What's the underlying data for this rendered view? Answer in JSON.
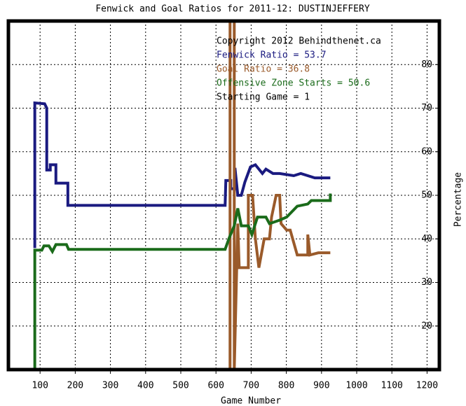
{
  "chart_data": {
    "type": "line",
    "title": "Fenwick and Goal Ratios for 2011-12: DUSTINJEFFERY",
    "xlabel": "Game Number",
    "ylabel": "Percentage",
    "annotations": [
      {
        "text": "Copyright 2012 Behindthenet.ca",
        "color": "#000000"
      },
      {
        "text": "Fenwick Ratio = 53.7",
        "color": "#1a1a80"
      },
      {
        "text": "Goal Ratio = 36.8",
        "color": "#9a5a2a"
      },
      {
        "text": "Offensive Zone Starts = 50.6",
        "color": "#1a6b1a"
      },
      {
        "text": "Starting Game = 1",
        "color": "#000000"
      }
    ],
    "xlim": [
      10,
      1235
    ],
    "ylim": [
      10,
      90
    ],
    "xticks": [
      100,
      200,
      300,
      400,
      500,
      600,
      700,
      800,
      900,
      1000,
      1100,
      1200
    ],
    "yticks": [
      20,
      30,
      40,
      50,
      60,
      70,
      80
    ],
    "grid": true,
    "series": [
      {
        "color": "#1a1a80",
        "x": [
          85,
          85,
          113,
          119,
          119,
          129,
          129,
          145,
          145,
          179,
          179,
          626,
          628,
          642,
          642,
          654,
          654,
          662,
          672,
          682,
          698,
          712,
          732,
          742,
          762,
          781,
          821,
          841,
          881,
          925
        ],
        "values": [
          37.9,
          71.2,
          71,
          70,
          55.8,
          55.8,
          57,
          57,
          52.8,
          52.8,
          47.7,
          47.7,
          53.4,
          53.4,
          51.5,
          51.5,
          56.3,
          50,
          50,
          53,
          56.5,
          57,
          55,
          56,
          55,
          55,
          54.5,
          55,
          54,
          54
        ]
      },
      {
        "color": "#9a5a2a",
        "x": [
          640,
          640,
          652,
          652,
          662,
          666,
          692,
          692,
          704,
          712,
          722,
          737,
          752,
          758,
          771,
          781,
          785,
          801,
          811,
          831,
          861,
          861,
          867,
          891,
          925
        ],
        "values": [
          10,
          90,
          90,
          10,
          43.5,
          33.4,
          33.4,
          50,
          50,
          40,
          33.4,
          40,
          40,
          45,
          50,
          50,
          43.5,
          42,
          42,
          36.3,
          36.3,
          41,
          36.3,
          36.8,
          36.8
        ]
      },
      {
        "color": "#1a6b1a",
        "x": [
          85,
          85,
          105,
          111,
          125,
          135,
          145,
          175,
          181,
          626,
          638,
          652,
          662,
          672,
          692,
          702,
          718,
          742,
          752,
          781,
          801,
          831,
          861,
          871,
          925,
          925
        ],
        "values": [
          10,
          37.4,
          37.4,
          38.4,
          38.4,
          37.1,
          38.7,
          38.7,
          37.6,
          37.6,
          40.3,
          43,
          47,
          43,
          43,
          41,
          45,
          45,
          43.5,
          44.3,
          45,
          47.5,
          48,
          48.8,
          48.8,
          50.4
        ]
      }
    ]
  }
}
